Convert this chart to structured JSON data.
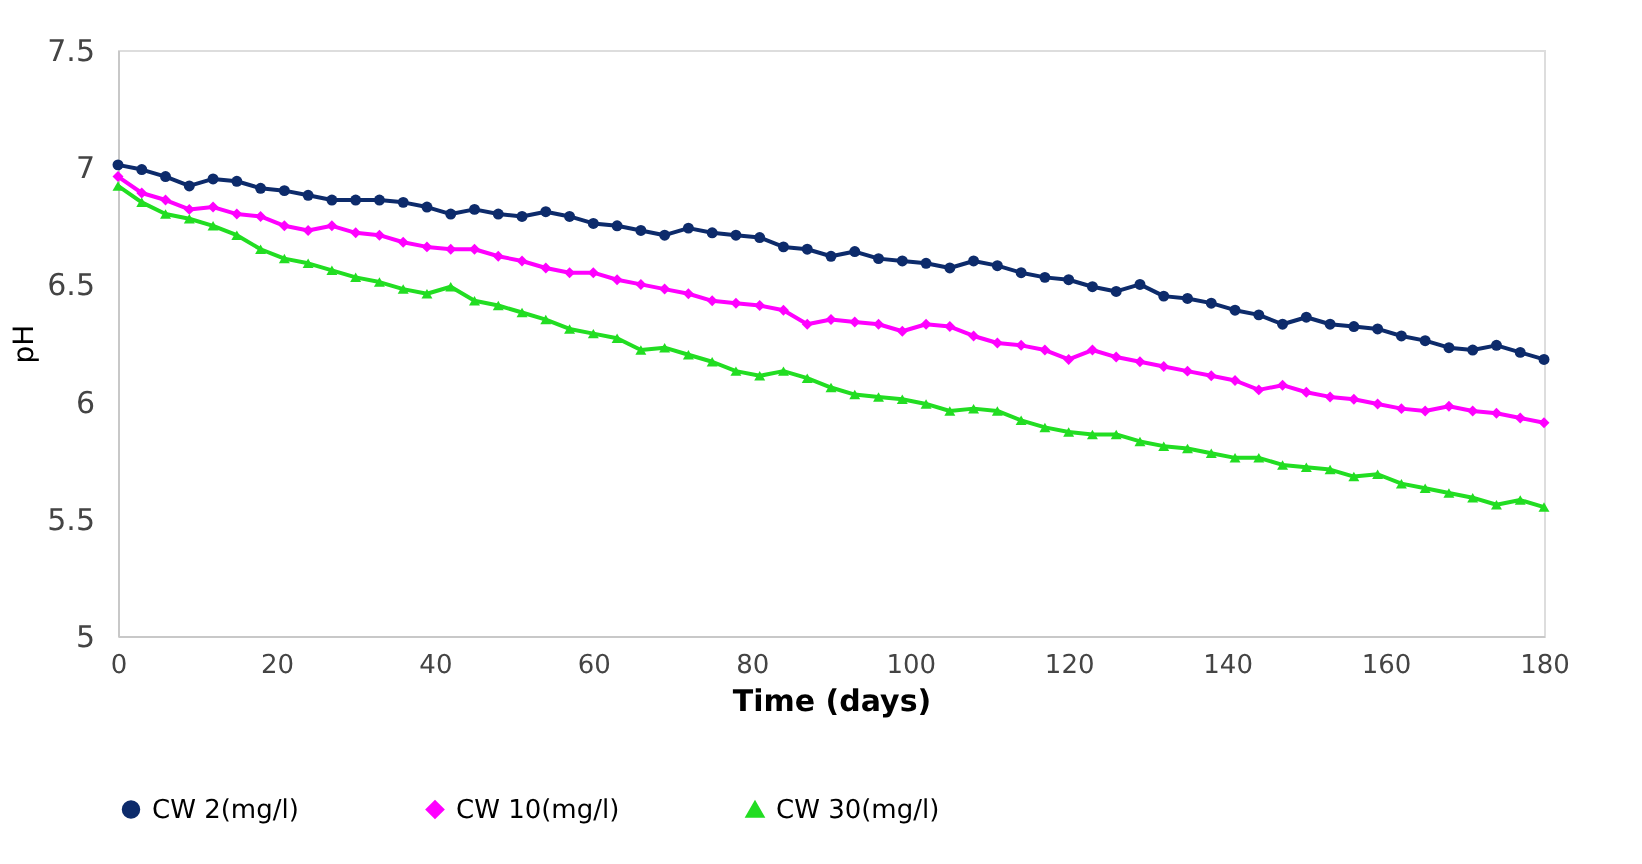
{
  "chart_data": {
    "type": "line",
    "xlabel": "Time (days)",
    "ylabel": "pH",
    "x": [
      0,
      3,
      6,
      9,
      12,
      15,
      18,
      21,
      24,
      27,
      30,
      33,
      36,
      39,
      42,
      45,
      48,
      51,
      54,
      57,
      60,
      63,
      66,
      69,
      72,
      75,
      78,
      81,
      84,
      87,
      90,
      93,
      96,
      99,
      102,
      105,
      108,
      111,
      114,
      117,
      120,
      123,
      126,
      129,
      132,
      135,
      138,
      141,
      144,
      147,
      150,
      153,
      156,
      159,
      162,
      165,
      168,
      171,
      174,
      177,
      180
    ],
    "series": [
      {
        "name": "CW 2(mg/l)",
        "color": "#0d2b6b",
        "marker": "circle",
        "values": [
          7.01,
          6.99,
          6.96,
          6.92,
          6.95,
          6.94,
          6.91,
          6.9,
          6.88,
          6.86,
          6.86,
          6.86,
          6.85,
          6.83,
          6.8,
          6.82,
          6.8,
          6.79,
          6.81,
          6.79,
          6.76,
          6.75,
          6.73,
          6.71,
          6.74,
          6.72,
          6.71,
          6.7,
          6.66,
          6.65,
          6.62,
          6.64,
          6.61,
          6.6,
          6.59,
          6.57,
          6.6,
          6.58,
          6.55,
          6.53,
          6.52,
          6.49,
          6.47,
          6.5,
          6.45,
          6.44,
          6.42,
          6.39,
          6.37,
          6.33,
          6.36,
          6.33,
          6.32,
          6.31,
          6.28,
          6.26,
          6.23,
          6.22,
          6.24,
          6.21,
          6.18
        ]
      },
      {
        "name": "CW 10(mg/l)",
        "color": "#ff00ff",
        "marker": "diamond",
        "values": [
          6.96,
          6.89,
          6.86,
          6.82,
          6.83,
          6.8,
          6.79,
          6.75,
          6.73,
          6.75,
          6.72,
          6.71,
          6.68,
          6.66,
          6.65,
          6.65,
          6.62,
          6.6,
          6.57,
          6.55,
          6.55,
          6.52,
          6.5,
          6.48,
          6.46,
          6.43,
          6.42,
          6.41,
          6.39,
          6.33,
          6.35,
          6.34,
          6.33,
          6.3,
          6.33,
          6.32,
          6.28,
          6.25,
          6.24,
          6.22,
          6.18,
          6.22,
          6.19,
          6.17,
          6.15,
          6.13,
          6.11,
          6.09,
          6.05,
          6.07,
          6.04,
          6.02,
          6.01,
          5.99,
          5.97,
          5.96,
          5.98,
          5.96,
          5.95,
          5.93,
          5.91
        ]
      },
      {
        "name": "CW 30(mg/l)",
        "color": "#22dd22",
        "marker": "triangle",
        "values": [
          6.92,
          6.85,
          6.8,
          6.78,
          6.75,
          6.71,
          6.65,
          6.61,
          6.59,
          6.56,
          6.53,
          6.51,
          6.48,
          6.46,
          6.49,
          6.43,
          6.41,
          6.38,
          6.35,
          6.31,
          6.29,
          6.27,
          6.22,
          6.23,
          6.2,
          6.17,
          6.13,
          6.11,
          6.13,
          6.1,
          6.06,
          6.03,
          6.02,
          6.01,
          5.99,
          5.96,
          5.97,
          5.96,
          5.92,
          5.89,
          5.87,
          5.86,
          5.86,
          5.83,
          5.81,
          5.8,
          5.78,
          5.76,
          5.76,
          5.73,
          5.72,
          5.71,
          5.68,
          5.69,
          5.65,
          5.63,
          5.61,
          5.59,
          5.56,
          5.58,
          5.55
        ]
      }
    ],
    "xlim": [
      0,
      180
    ],
    "xticks": [
      0,
      20,
      40,
      60,
      80,
      100,
      120,
      140,
      160,
      180
    ],
    "ylim": [
      5,
      7.5
    ],
    "yticks": [
      5,
      5.5,
      6,
      6.5,
      7,
      7.5
    ],
    "grid": false,
    "legend": "bottom"
  }
}
